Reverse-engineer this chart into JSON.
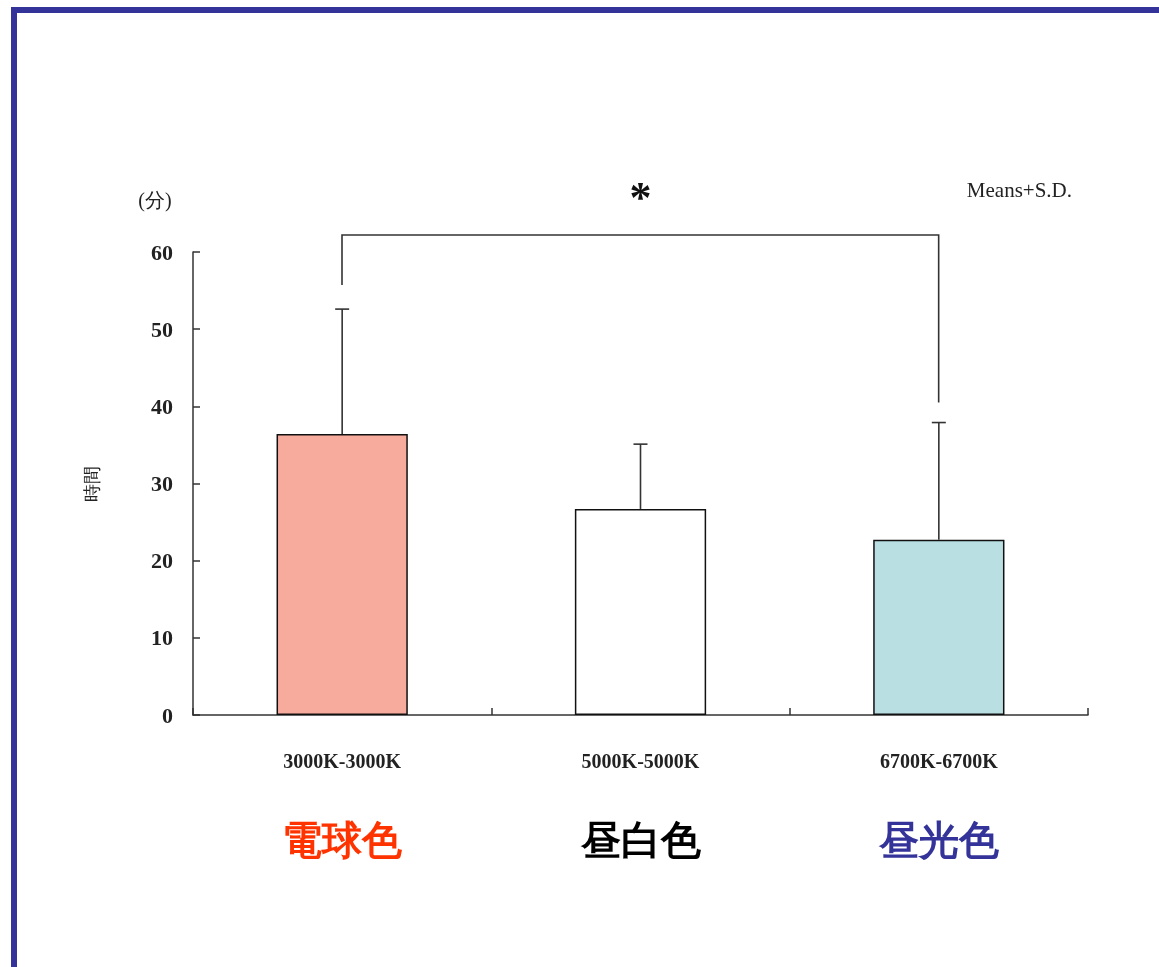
{
  "chart_data": {
    "type": "bar",
    "categories": [
      "3000K-3000K",
      "5000K-5000K",
      "6700K-6700K"
    ],
    "values": [
      36.4,
      26.7,
      22.7
    ],
    "colors": [
      "#f7ab9c",
      "#ffffff",
      "#b9dfe2"
    ],
    "errors": [
      [
        36.4,
        52.6
      ],
      [
        26.7,
        35.1
      ],
      [
        22.7,
        37.9
      ]
    ],
    "ylabel": "時間",
    "ylim": [
      0,
      60
    ],
    "yticks": [
      0,
      10,
      20,
      30,
      40,
      50,
      60
    ],
    "annotations": [
      "(分)",
      "Means+S.D.",
      "*",
      "電球色",
      "昼白色",
      "昼光色"
    ]
  }
}
